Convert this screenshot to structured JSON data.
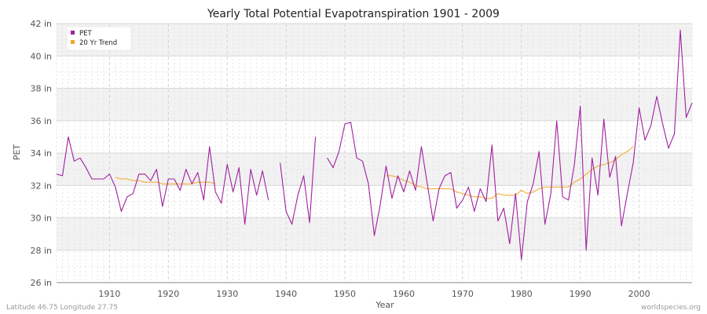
{
  "chart_data": {
    "type": "line",
    "title": "Yearly Total Potential Evapotranspiration 1901 - 2009",
    "xlabel": "Year",
    "ylabel": "PET",
    "xlim": [
      1901,
      2009
    ],
    "ylim": [
      26,
      42
    ],
    "x_ticks": [
      "1910",
      "1920",
      "1930",
      "1940",
      "1950",
      "1960",
      "1970",
      "1980",
      "1990",
      "2000"
    ],
    "x_tick_values": [
      1910,
      1920,
      1930,
      1940,
      1950,
      1960,
      1970,
      1980,
      1990,
      2000
    ],
    "y_ticks": [
      "26 in",
      "28 in",
      "30 in",
      "32 in",
      "34 in",
      "36 in",
      "38 in",
      "40 in",
      "42 in"
    ],
    "y_tick_values": [
      26,
      28,
      30,
      32,
      34,
      36,
      38,
      40,
      42
    ],
    "legend_position": "top-left",
    "grid": true,
    "series": [
      {
        "name": "PET",
        "color": "#a020a0",
        "points": [
          [
            1901,
            32.7
          ],
          [
            1902,
            32.6
          ],
          [
            1903,
            35.0
          ],
          [
            1904,
            33.5
          ],
          [
            1905,
            33.7
          ],
          [
            1906,
            33.1
          ],
          [
            1907,
            32.4
          ],
          [
            1908,
            32.4
          ],
          [
            1909,
            32.4
          ],
          [
            1910,
            32.7
          ],
          [
            1911,
            31.9
          ],
          [
            1912,
            30.4
          ],
          [
            1913,
            31.3
          ],
          [
            1914,
            31.5
          ],
          [
            1915,
            32.7
          ],
          [
            1916,
            32.7
          ],
          [
            1917,
            32.3
          ],
          [
            1918,
            33.0
          ],
          [
            1919,
            30.7
          ],
          [
            1920,
            32.4
          ],
          [
            1921,
            32.4
          ],
          [
            1922,
            31.7
          ],
          [
            1923,
            33.0
          ],
          [
            1924,
            32.1
          ],
          [
            1925,
            32.8
          ],
          [
            1926,
            31.1
          ],
          [
            1927,
            34.4
          ],
          [
            1928,
            31.6
          ],
          [
            1929,
            30.9
          ],
          [
            1930,
            33.3
          ],
          [
            1931,
            31.6
          ],
          [
            1932,
            33.1
          ],
          [
            1933,
            29.6
          ],
          [
            1934,
            33.0
          ],
          [
            1935,
            31.4
          ],
          [
            1936,
            32.9
          ],
          [
            1937,
            31.1
          ],
          [
            1938,
            null
          ],
          [
            1939,
            33.4
          ],
          [
            1940,
            30.4
          ],
          [
            1941,
            29.6
          ],
          [
            1942,
            31.4
          ],
          [
            1943,
            32.6
          ],
          [
            1944,
            29.7
          ],
          [
            1945,
            35.0
          ],
          [
            1946,
            null
          ],
          [
            1947,
            33.7
          ],
          [
            1948,
            33.1
          ],
          [
            1949,
            34.1
          ],
          [
            1950,
            35.8
          ],
          [
            1951,
            35.9
          ],
          [
            1952,
            33.7
          ],
          [
            1953,
            33.5
          ],
          [
            1954,
            32.1
          ],
          [
            1955,
            28.9
          ],
          [
            1956,
            30.8
          ],
          [
            1957,
            33.2
          ],
          [
            1958,
            31.2
          ],
          [
            1959,
            32.6
          ],
          [
            1960,
            31.6
          ],
          [
            1961,
            32.9
          ],
          [
            1962,
            31.7
          ],
          [
            1963,
            34.4
          ],
          [
            1964,
            32.1
          ],
          [
            1965,
            29.8
          ],
          [
            1966,
            31.8
          ],
          [
            1967,
            32.6
          ],
          [
            1968,
            32.8
          ],
          [
            1969,
            30.6
          ],
          [
            1970,
            31.1
          ],
          [
            1971,
            31.9
          ],
          [
            1972,
            30.4
          ],
          [
            1973,
            31.8
          ],
          [
            1974,
            31.0
          ],
          [
            1975,
            34.5
          ],
          [
            1976,
            29.8
          ],
          [
            1977,
            30.6
          ],
          [
            1978,
            28.4
          ],
          [
            1979,
            31.5
          ],
          [
            1980,
            27.4
          ],
          [
            1981,
            31.0
          ],
          [
            1982,
            32.1
          ],
          [
            1983,
            34.1
          ],
          [
            1984,
            29.6
          ],
          [
            1985,
            31.5
          ],
          [
            1986,
            36.0
          ],
          [
            1987,
            31.3
          ],
          [
            1988,
            31.1
          ],
          [
            1989,
            33.3
          ],
          [
            1990,
            36.9
          ],
          [
            1991,
            28.0
          ],
          [
            1992,
            33.7
          ],
          [
            1993,
            31.4
          ],
          [
            1994,
            36.1
          ],
          [
            1995,
            32.5
          ],
          [
            1996,
            33.8
          ],
          [
            1997,
            29.5
          ],
          [
            1998,
            31.5
          ],
          [
            1999,
            33.4
          ],
          [
            2000,
            36.8
          ],
          [
            2001,
            34.8
          ],
          [
            2002,
            35.7
          ],
          [
            2003,
            37.5
          ],
          [
            2004,
            35.8
          ],
          [
            2005,
            34.3
          ],
          [
            2006,
            35.2
          ],
          [
            2007,
            41.6
          ],
          [
            2008,
            36.2
          ],
          [
            2009,
            37.1
          ]
        ]
      },
      {
        "name": "20 Yr Trend",
        "color": "#f5a623",
        "points": [
          [
            1911,
            32.5
          ],
          [
            1912,
            32.4
          ],
          [
            1913,
            32.4
          ],
          [
            1914,
            32.3
          ],
          [
            1915,
            32.3
          ],
          [
            1916,
            32.2
          ],
          [
            1917,
            32.2
          ],
          [
            1918,
            32.2
          ],
          [
            1919,
            32.1
          ],
          [
            1920,
            32.1
          ],
          [
            1921,
            32.1
          ],
          [
            1922,
            32.1
          ],
          [
            1923,
            32.1
          ],
          [
            1924,
            32.1
          ],
          [
            1925,
            32.2
          ],
          [
            1926,
            32.2
          ],
          [
            1927,
            32.2
          ],
          [
            1928,
            32.1
          ],
          [
            1957,
            32.6
          ],
          [
            1958,
            32.6
          ],
          [
            1959,
            32.5
          ],
          [
            1960,
            32.3
          ],
          [
            1961,
            32.2
          ],
          [
            1962,
            32.0
          ],
          [
            1963,
            31.9
          ],
          [
            1964,
            31.8
          ],
          [
            1965,
            31.8
          ],
          [
            1966,
            31.8
          ],
          [
            1967,
            31.8
          ],
          [
            1968,
            31.8
          ],
          [
            1969,
            31.6
          ],
          [
            1970,
            31.5
          ],
          [
            1971,
            31.4
          ],
          [
            1972,
            31.3
          ],
          [
            1973,
            31.3
          ],
          [
            1974,
            31.2
          ],
          [
            1975,
            31.2
          ],
          [
            1976,
            31.5
          ],
          [
            1977,
            31.4
          ],
          [
            1978,
            31.4
          ],
          [
            1979,
            31.4
          ],
          [
            1980,
            31.7
          ],
          [
            1981,
            31.5
          ],
          [
            1982,
            31.6
          ],
          [
            1983,
            31.8
          ],
          [
            1984,
            31.9
          ],
          [
            1985,
            31.9
          ],
          [
            1986,
            31.9
          ],
          [
            1987,
            31.9
          ],
          [
            1988,
            31.9
          ],
          [
            1989,
            32.2
          ],
          [
            1990,
            32.4
          ],
          [
            1991,
            32.7
          ],
          [
            1992,
            33.0
          ],
          [
            1993,
            33.2
          ],
          [
            1994,
            33.3
          ],
          [
            1995,
            33.4
          ],
          [
            1996,
            33.6
          ],
          [
            1997,
            33.9
          ],
          [
            1998,
            34.1
          ],
          [
            1999,
            34.4
          ]
        ]
      }
    ]
  },
  "footer": {
    "left": "Latitude 46.75 Longitude 27.75",
    "right": "worldspecies.org"
  }
}
